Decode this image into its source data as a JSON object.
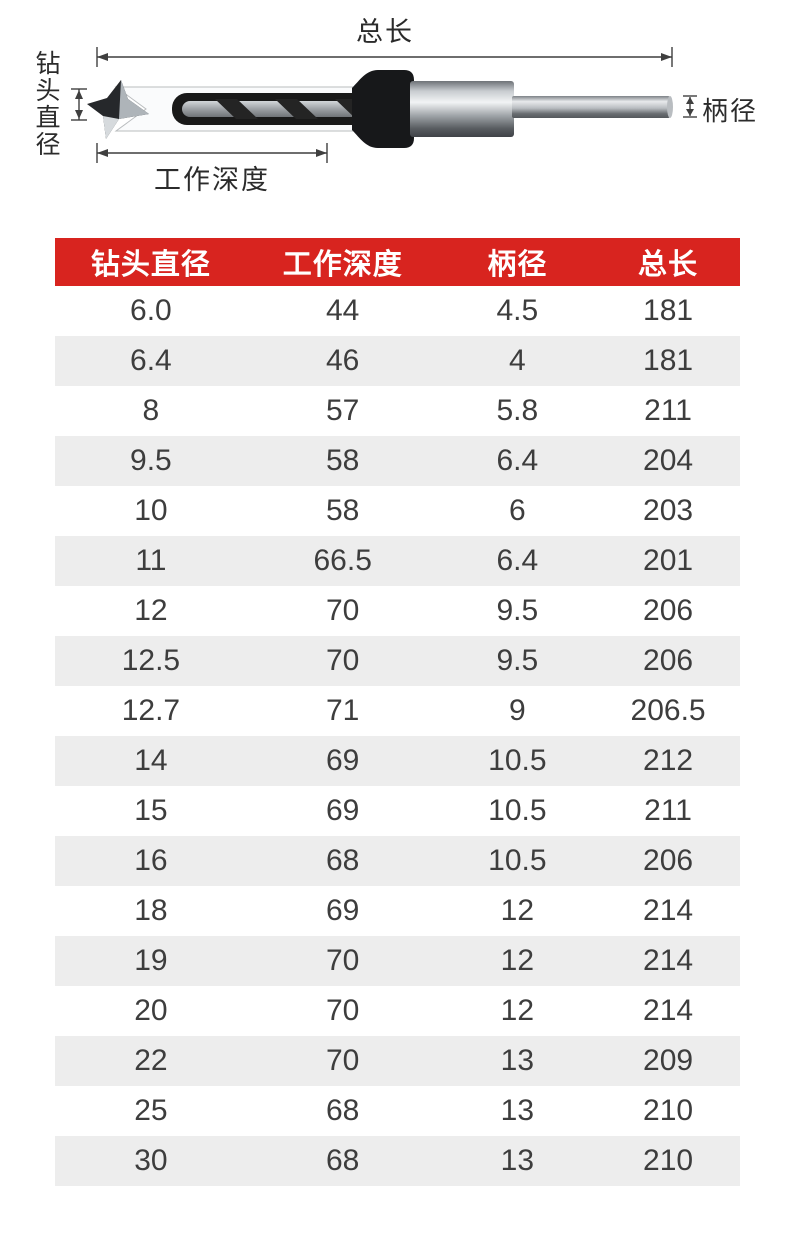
{
  "diagram": {
    "labels": {
      "total_length": "总长",
      "bit_diameter": "钻头直径",
      "working_depth": "工作深度",
      "shank_diameter": "柄径"
    },
    "icons": [
      "drill-bit-illustration",
      "dimension-lines"
    ]
  },
  "table": {
    "headers": [
      "钻头直径",
      "工作深度",
      "柄径",
      "总长"
    ],
    "rows": [
      [
        "6.0",
        "44",
        "4.5",
        "181"
      ],
      [
        "6.4",
        "46",
        "4",
        "181"
      ],
      [
        "8",
        "57",
        "5.8",
        "211"
      ],
      [
        "9.5",
        "58",
        "6.4",
        "204"
      ],
      [
        "10",
        "58",
        "6",
        "203"
      ],
      [
        "11",
        "66.5",
        "6.4",
        "201"
      ],
      [
        "12",
        "70",
        "9.5",
        "206"
      ],
      [
        "12.5",
        "70",
        "9.5",
        "206"
      ],
      [
        "12.7",
        "71",
        "9",
        "206.5"
      ],
      [
        "14",
        "69",
        "10.5",
        "212"
      ],
      [
        "15",
        "69",
        "10.5",
        "211"
      ],
      [
        "16",
        "68",
        "10.5",
        "206"
      ],
      [
        "18",
        "69",
        "12",
        "214"
      ],
      [
        "19",
        "70",
        "12",
        "214"
      ],
      [
        "20",
        "70",
        "12",
        "214"
      ],
      [
        "22",
        "70",
        "13",
        "209"
      ],
      [
        "25",
        "68",
        "13",
        "210"
      ],
      [
        "30",
        "68",
        "13",
        "210"
      ]
    ],
    "colors": {
      "header_bg": "#d8241f",
      "header_text": "#ffffff",
      "row_alt_bg": "#ededed",
      "row_text": "#3d3d3d",
      "line_color": "#3f3f3f"
    }
  }
}
